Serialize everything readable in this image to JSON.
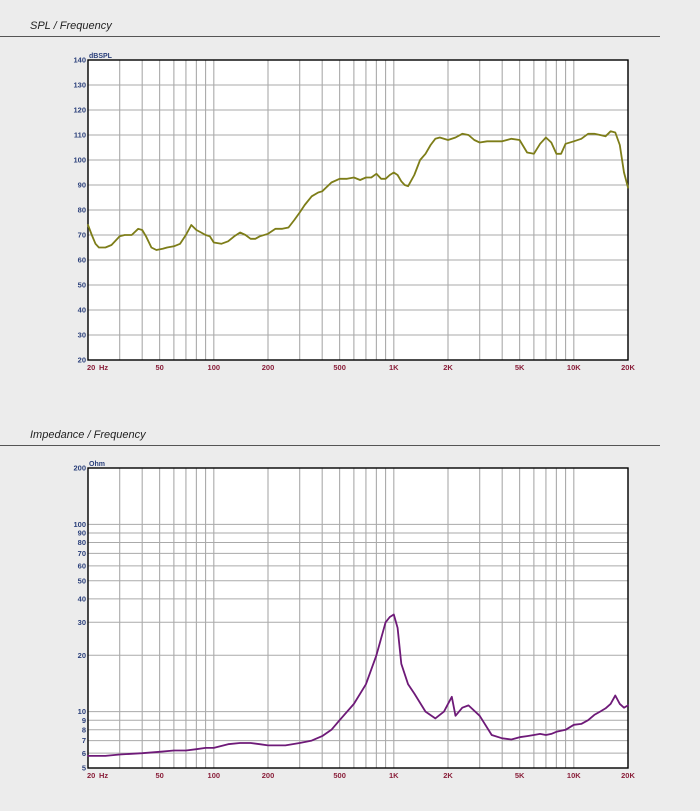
{
  "colors": {
    "background": "#ececec",
    "plot_bg": "#ffffff",
    "grid": "#aaaaaa",
    "spl_line": "#7d7d18",
    "impedance_line": "#6e1a78"
  },
  "chart_data": [
    {
      "type": "line",
      "title": "SPL / Frequency",
      "ylabel": "dBSPL",
      "xscale": "log",
      "xlim": [
        20,
        20000
      ],
      "ylim": [
        20,
        140
      ],
      "xticks": [
        20,
        50,
        100,
        200,
        500,
        1000,
        2000,
        5000,
        10000,
        20000
      ],
      "xtick_labels": [
        "20",
        "50",
        "100",
        "200",
        "500",
        "1K",
        "2K",
        "5K",
        "10K",
        "20K"
      ],
      "xunit": "Hz",
      "yticks": [
        20,
        30,
        40,
        50,
        60,
        70,
        80,
        90,
        100,
        110,
        120,
        130,
        140
      ],
      "ytick_labels": [
        "20",
        "30",
        "40",
        "50",
        "60",
        "70",
        "80",
        "90",
        "100",
        "110",
        "120",
        "130",
        "140"
      ],
      "grid": true,
      "series": [
        {
          "x": [
            20,
            21,
            22,
            23,
            25,
            27,
            30,
            32,
            35,
            38,
            40,
            42,
            45,
            48,
            52,
            55,
            60,
            65,
            70,
            75,
            80,
            85,
            90,
            95,
            100,
            110,
            120,
            130,
            140,
            150,
            160,
            170,
            180,
            200,
            220,
            240,
            260,
            280,
            300,
            320,
            350,
            380,
            400,
            450,
            500,
            550,
            600,
            650,
            700,
            750,
            800,
            850,
            900,
            950,
            1000,
            1050,
            1100,
            1150,
            1200,
            1300,
            1400,
            1500,
            1600,
            1700,
            1800,
            2000,
            2200,
            2400,
            2600,
            2800,
            3000,
            3300,
            3600,
            4000,
            4500,
            5000,
            5500,
            6000,
            6500,
            7000,
            7500,
            8000,
            8500,
            9000,
            10000,
            11000,
            12000,
            13000,
            14000,
            15000,
            16000,
            17000,
            18000,
            19000,
            20000
          ],
          "y": [
            74,
            70,
            66.5,
            65,
            65,
            66,
            69.5,
            70,
            70,
            72.5,
            72,
            69.5,
            65,
            64,
            64.5,
            65,
            65.5,
            66.5,
            70,
            74,
            72,
            71,
            70,
            69.5,
            67,
            66.5,
            67.5,
            69.5,
            71,
            70,
            68.5,
            68.5,
            69.5,
            70.5,
            72.5,
            72.5,
            73,
            76,
            79,
            82,
            85.5,
            87,
            87.5,
            91,
            92.5,
            92.5,
            93,
            92,
            93,
            93,
            94.5,
            92.5,
            92.5,
            94,
            95,
            94,
            91.5,
            90,
            89.5,
            94,
            100,
            102.5,
            106,
            108.5,
            109,
            108,
            109,
            110.5,
            110,
            108,
            107,
            107.5,
            107.5,
            107.5,
            108.5,
            108,
            103,
            102.5,
            106.5,
            109,
            107,
            102.5,
            102.5,
            106.5,
            107.5,
            108.5,
            110.5,
            110.5,
            110,
            109.5,
            111.5,
            111,
            106,
            95,
            89
          ]
        }
      ]
    },
    {
      "type": "line",
      "title": "Impedance / Frequency",
      "ylabel": "Ohm",
      "xscale": "log",
      "yscale": "log",
      "xlim": [
        20,
        20000
      ],
      "ylim": [
        5,
        200
      ],
      "xticks": [
        20,
        50,
        100,
        200,
        500,
        1000,
        2000,
        5000,
        10000,
        20000
      ],
      "xtick_labels": [
        "20",
        "50",
        "100",
        "200",
        "500",
        "1K",
        "2K",
        "5K",
        "10K",
        "20K"
      ],
      "xunit": "Hz",
      "yticks": [
        5,
        6,
        7,
        8,
        9,
        10,
        20,
        30,
        40,
        50,
        60,
        70,
        80,
        90,
        100,
        200
      ],
      "ytick_labels": [
        "5",
        "6",
        "7",
        "8",
        "9",
        "10",
        "20",
        "30",
        "40",
        "50",
        "60",
        "70",
        "80",
        "90",
        "100",
        "200"
      ],
      "grid": true,
      "series": [
        {
          "x": [
            20,
            25,
            30,
            40,
            50,
            60,
            70,
            80,
            90,
            100,
            120,
            140,
            160,
            180,
            200,
            250,
            300,
            350,
            400,
            450,
            500,
            600,
            700,
            800,
            900,
            950,
            1000,
            1050,
            1100,
            1200,
            1300,
            1500,
            1700,
            1900,
            2000,
            2100,
            2200,
            2400,
            2600,
            3000,
            3500,
            4000,
            4500,
            5000,
            5500,
            6000,
            6500,
            7000,
            7500,
            8000,
            9000,
            10000,
            11000,
            12000,
            13000,
            14000,
            15000,
            16000,
            17000,
            18000,
            19000,
            20000
          ],
          "y": [
            5.8,
            5.8,
            5.9,
            6.0,
            6.1,
            6.2,
            6.2,
            6.3,
            6.4,
            6.4,
            6.7,
            6.8,
            6.8,
            6.7,
            6.6,
            6.6,
            6.8,
            7.0,
            7.4,
            8.0,
            9.0,
            11.0,
            14.0,
            20.0,
            30.0,
            32.0,
            33.0,
            28.0,
            18.0,
            14.0,
            12.5,
            10.0,
            9.2,
            10.0,
            11.0,
            12.0,
            9.5,
            10.5,
            10.8,
            9.5,
            7.5,
            7.2,
            7.1,
            7.3,
            7.4,
            7.5,
            7.6,
            7.5,
            7.6,
            7.8,
            8.0,
            8.5,
            8.6,
            9.0,
            9.6,
            10.0,
            10.4,
            11.0,
            12.2,
            11.0,
            10.5,
            10.8
          ]
        }
      ]
    }
  ]
}
